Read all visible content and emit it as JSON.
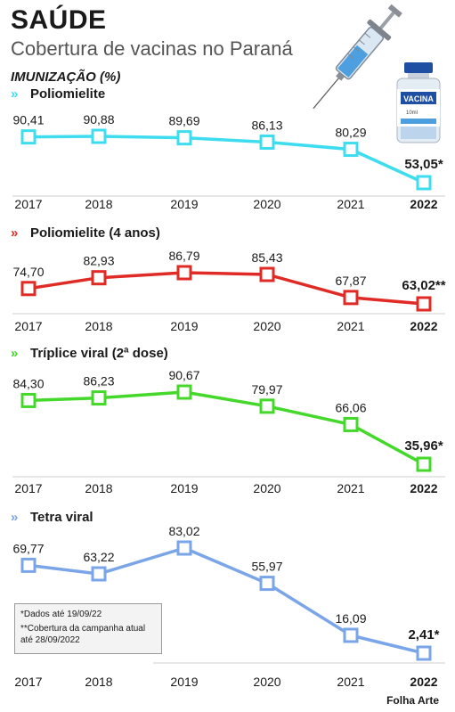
{
  "header": {
    "title": "SAÚDE",
    "subtitle": "Cobertura de vacinas no Paraná",
    "section": "IMUNIZAÇÃO (%)",
    "vial_label": "VACINA",
    "vial_sub": "10ml"
  },
  "notes": {
    "line1": "*Dados até 19/09/22",
    "line2": "**Cobertura da campanha atual até 28/09/2022"
  },
  "credit": "Folha Arte",
  "chart_data": [
    {
      "type": "line",
      "title": "Poliomielite",
      "color": "#3ddcef",
      "x": [
        "2017",
        "2018",
        "2019",
        "2020",
        "2021",
        "2022"
      ],
      "values": [
        90.41,
        90.88,
        89.69,
        86.13,
        80.29,
        53.05
      ],
      "labels": [
        "90,41",
        "90,88",
        "89,69",
        "86,13",
        "80,29",
        "53,05*"
      ]
    },
    {
      "type": "line",
      "title": "Poliomielite (4 anos)",
      "color": "#e02a25",
      "x": [
        "2017",
        "2018",
        "2019",
        "2020",
        "2021",
        "2022"
      ],
      "values": [
        74.7,
        82.93,
        86.79,
        85.43,
        67.87,
        63.02
      ],
      "labels": [
        "74,70",
        "82,93",
        "86,79",
        "85,43",
        "67,87",
        "63,02**"
      ]
    },
    {
      "type": "line",
      "title": "Tríplice viral (2ª dose)",
      "color": "#44d82a",
      "x": [
        "2017",
        "2018",
        "2019",
        "2020",
        "2021",
        "2022"
      ],
      "values": [
        84.3,
        86.23,
        90.67,
        79.97,
        66.06,
        35.96
      ],
      "labels": [
        "84,30",
        "86,23",
        "90,67",
        "79,97",
        "66,06",
        "35,96*"
      ]
    },
    {
      "type": "line",
      "title": "Tetra viral",
      "color": "#7aa5e8",
      "x": [
        "2017",
        "2018",
        "2019",
        "2020",
        "2021",
        "2022"
      ],
      "values": [
        69.77,
        63.22,
        83.02,
        55.97,
        16.09,
        2.41
      ],
      "labels": [
        "69,77",
        "63,22",
        "83,02",
        "55,97",
        "16,09",
        "2,41*"
      ]
    }
  ]
}
